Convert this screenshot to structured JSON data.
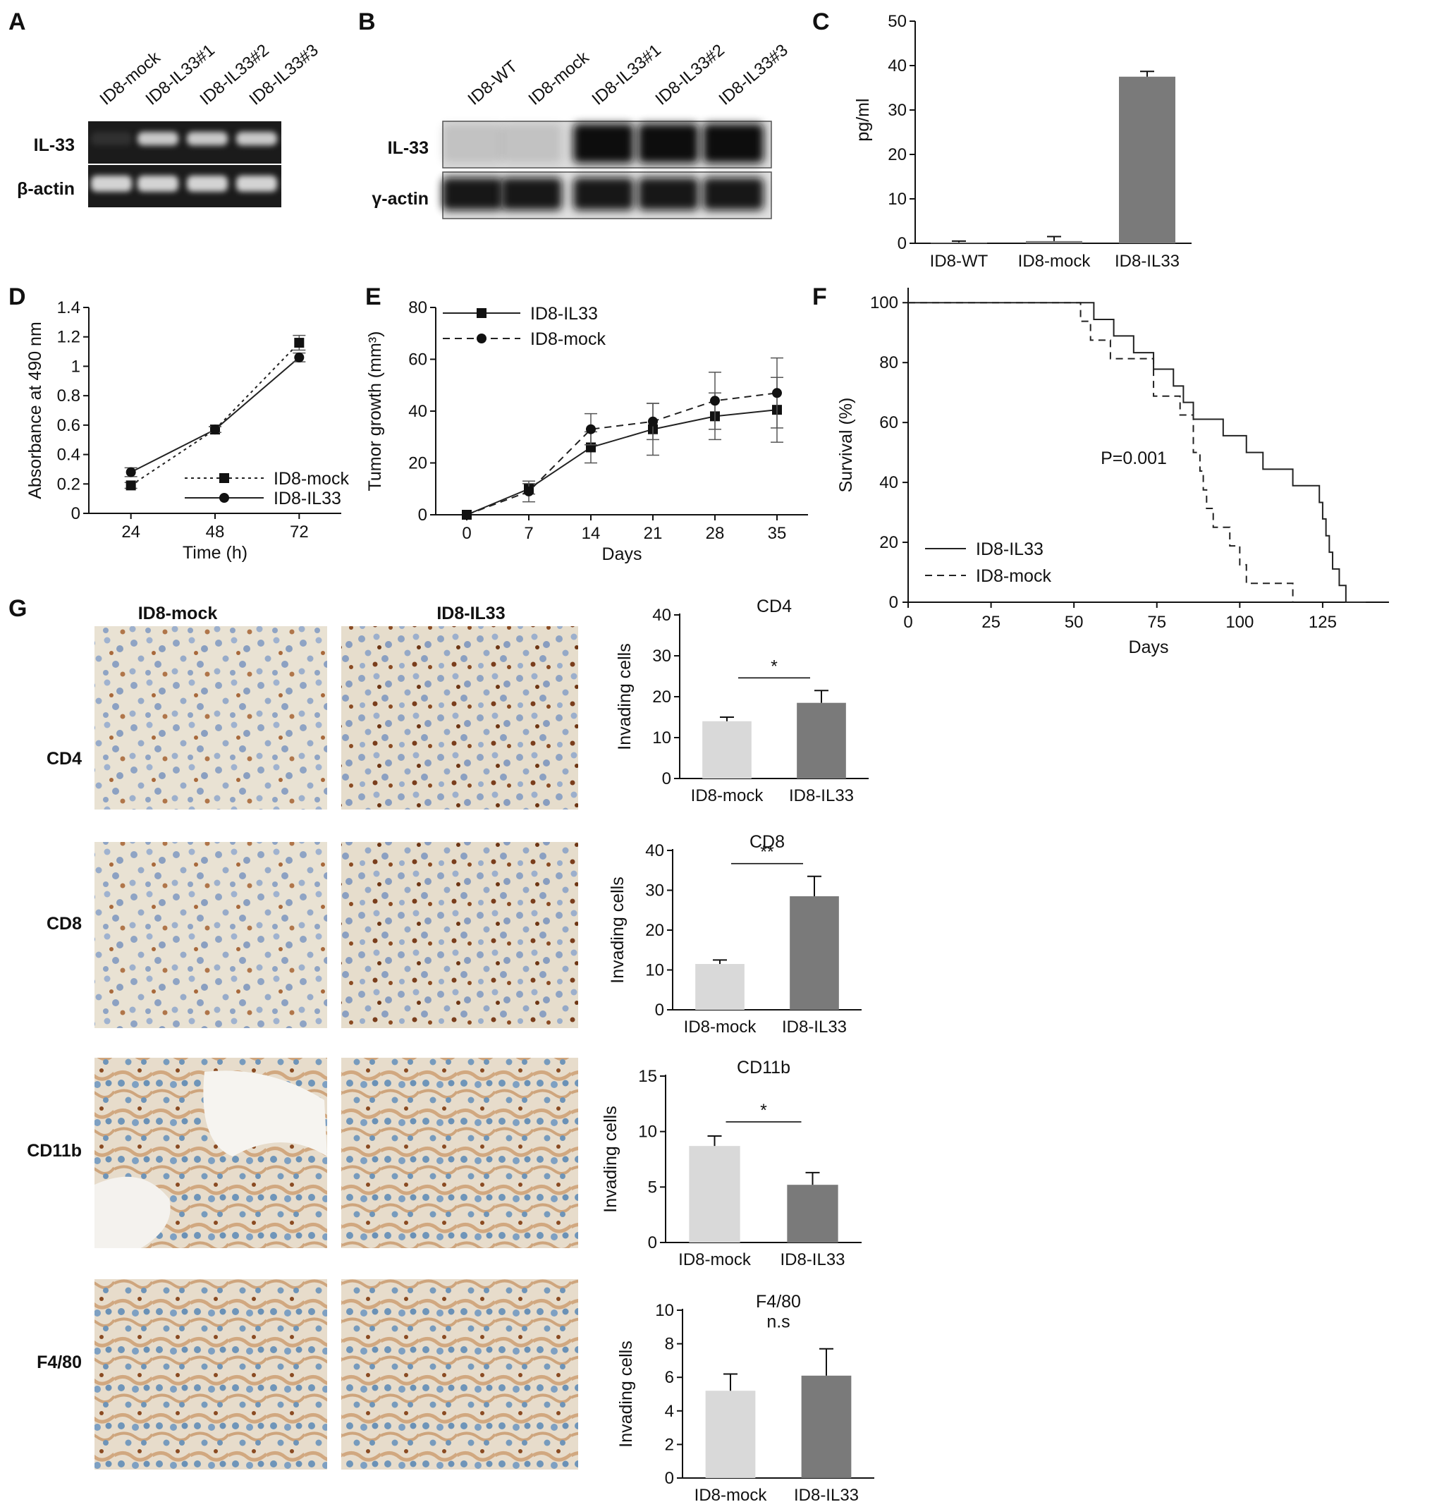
{
  "panels": {
    "A": {
      "label": "A",
      "lanes": [
        "ID8-mock",
        "ID8-IL33#1",
        "ID8-IL33#2",
        "ID8-IL33#3"
      ],
      "rows": [
        "IL-33",
        "β-actin"
      ],
      "il33_band_intensity": [
        0.1,
        0.85,
        0.85,
        0.85
      ],
      "actin_band_intensity": [
        0.9,
        0.9,
        0.9,
        0.9
      ]
    },
    "B": {
      "label": "B",
      "lanes": [
        "ID8-WT",
        "ID8-mock",
        "ID8-IL33#1",
        "ID8-IL33#2",
        "ID8-IL33#3"
      ],
      "rows": [
        "IL-33",
        "γ-actin"
      ],
      "il33_band_intensity": [
        0.12,
        0.12,
        1.0,
        1.0,
        1.0
      ],
      "actin_band_intensity": [
        0.95,
        0.95,
        0.95,
        0.95,
        0.95
      ]
    },
    "G": {
      "label": "G",
      "columns": [
        "ID8-mock",
        "ID8-IL33"
      ],
      "rows": [
        "CD4",
        "CD8",
        "CD11b",
        "F4/80"
      ]
    }
  },
  "chart_data": [
    {
      "id": "C",
      "label": "C",
      "type": "bar",
      "categories": [
        "ID8-WT",
        "ID8-mock",
        "ID8-IL33"
      ],
      "values": [
        0.2,
        0.5,
        37.5
      ],
      "errors": [
        0.3,
        1.0,
        1.2
      ],
      "colors": [
        "#7a7a7a",
        "#7a7a7a",
        "#7a7a7a"
      ],
      "ylabel": "pg/ml",
      "ylim": [
        0,
        50
      ],
      "yticks": [
        0,
        10,
        20,
        30,
        40,
        50
      ]
    },
    {
      "id": "D",
      "label": "D",
      "type": "line",
      "x": [
        24,
        48,
        72
      ],
      "series": [
        {
          "name": "ID8-mock",
          "values": [
            0.19,
            0.57,
            1.16
          ],
          "errors": [
            0.02,
            0.02,
            0.05
          ],
          "marker": "square",
          "dash": "dotted"
        },
        {
          "name": "ID8-IL33",
          "values": [
            0.28,
            0.57,
            1.06
          ],
          "errors": [
            0.03,
            0.02,
            0.03
          ],
          "marker": "circle",
          "dash": "solid"
        }
      ],
      "xlabel": "Time (h)",
      "ylabel": "Absorbance at 490 nm",
      "xlim": [
        12,
        84
      ],
      "ylim": [
        0,
        1.4
      ],
      "xticks": [
        24,
        48,
        72
      ],
      "yticks": [
        0,
        0.2,
        0.4,
        0.6,
        0.8,
        1,
        1.2,
        1.4
      ],
      "legend": "bottom-right"
    },
    {
      "id": "E",
      "label": "E",
      "type": "line",
      "x": [
        0,
        7,
        14,
        21,
        28,
        35
      ],
      "series": [
        {
          "name": "ID8-IL33",
          "values": [
            0,
            10,
            26,
            33,
            38,
            40.5
          ],
          "errors": [
            0,
            2,
            6,
            10,
            9,
            12.5
          ],
          "marker": "square",
          "dash": "solid"
        },
        {
          "name": "ID8-mock",
          "values": [
            0,
            9,
            33,
            36,
            44,
            47
          ],
          "errors": [
            0,
            4,
            6,
            7,
            11,
            13.5
          ],
          "marker": "circle",
          "dash": "dashed"
        }
      ],
      "xlabel": "Days",
      "ylabel": "Tumor growth (mm³)",
      "xlim": [
        -3.5,
        38.5
      ],
      "ylim": [
        0,
        80
      ],
      "xticks": [
        0,
        7,
        14,
        21,
        28,
        35
      ],
      "yticks": [
        0,
        20,
        40,
        60,
        80
      ],
      "legend": "top-left"
    },
    {
      "id": "F",
      "label": "F",
      "type": "line",
      "subtype": "survival-step",
      "series": [
        {
          "name": "ID8-IL33",
          "dash": "solid",
          "x": [
            0,
            56,
            62,
            68,
            74,
            80,
            83,
            86,
            95,
            102,
            107,
            116,
            124,
            125,
            126,
            127,
            128,
            130,
            132,
            138
          ],
          "values": [
            100,
            94.4,
            88.9,
            83.3,
            77.8,
            72.2,
            66.7,
            61.1,
            55.6,
            50,
            44.4,
            38.9,
            33.3,
            27.8,
            22.2,
            16.7,
            11.1,
            5.6,
            0,
            0
          ]
        },
        {
          "name": "ID8-mock",
          "dash": "dashed",
          "x": [
            0,
            52,
            55,
            61,
            74,
            82,
            86,
            88,
            89,
            90,
            92,
            97,
            100,
            102,
            116
          ],
          "values": [
            100,
            93.8,
            87.5,
            81.3,
            68.8,
            62.5,
            50,
            43.8,
            37.5,
            31.3,
            25,
            18.8,
            12.5,
            6.3,
            0
          ]
        }
      ],
      "annotation": "P=0.001",
      "xlabel": "Days",
      "ylabel": "Survival (%)",
      "xlim": [
        0,
        145
      ],
      "ylim": [
        0,
        105
      ],
      "xticks": [
        0,
        25,
        50,
        75,
        100,
        125
      ],
      "yticks": [
        0,
        20,
        40,
        60,
        80,
        100
      ],
      "legend": "bottom-left"
    },
    {
      "id": "G-CD4",
      "type": "bar",
      "title": "CD4",
      "categories": [
        "ID8-mock",
        "ID8-IL33"
      ],
      "values": [
        14,
        18.5
      ],
      "errors": [
        1,
        3
      ],
      "colors": [
        "#d9d9d9",
        "#7a7a7a"
      ],
      "ylabel": "Invading cells",
      "ylim": [
        0,
        40
      ],
      "yticks": [
        0,
        10,
        20,
        30,
        40
      ],
      "significance": "*"
    },
    {
      "id": "G-CD8",
      "type": "bar",
      "title": "CD8",
      "categories": [
        "ID8-mock",
        "ID8-IL33"
      ],
      "values": [
        11.5,
        28.5
      ],
      "errors": [
        1,
        5
      ],
      "colors": [
        "#d9d9d9",
        "#7a7a7a"
      ],
      "ylabel": "Invading cells",
      "ylim": [
        0,
        40
      ],
      "yticks": [
        0,
        10,
        20,
        30,
        40
      ],
      "significance": "**"
    },
    {
      "id": "G-CD11b",
      "type": "bar",
      "title": "CD11b",
      "categories": [
        "ID8-mock",
        "ID8-IL33"
      ],
      "values": [
        8.7,
        5.2
      ],
      "errors": [
        0.9,
        1.1
      ],
      "colors": [
        "#d9d9d9",
        "#7a7a7a"
      ],
      "ylabel": "Invading cells",
      "ylim": [
        0,
        15
      ],
      "yticks": [
        0,
        5,
        10,
        15
      ],
      "significance": "*"
    },
    {
      "id": "G-F4/80",
      "type": "bar",
      "title": "F4/80",
      "categories": [
        "ID8-mock",
        "ID8-IL33"
      ],
      "values": [
        5.2,
        6.1
      ],
      "errors": [
        1,
        1.6
      ],
      "colors": [
        "#d9d9d9",
        "#7a7a7a"
      ],
      "ylabel": "Invading cells",
      "ylim": [
        0,
        10
      ],
      "yticks": [
        0,
        2,
        4,
        6,
        8,
        10
      ],
      "significance": "n.s"
    }
  ]
}
